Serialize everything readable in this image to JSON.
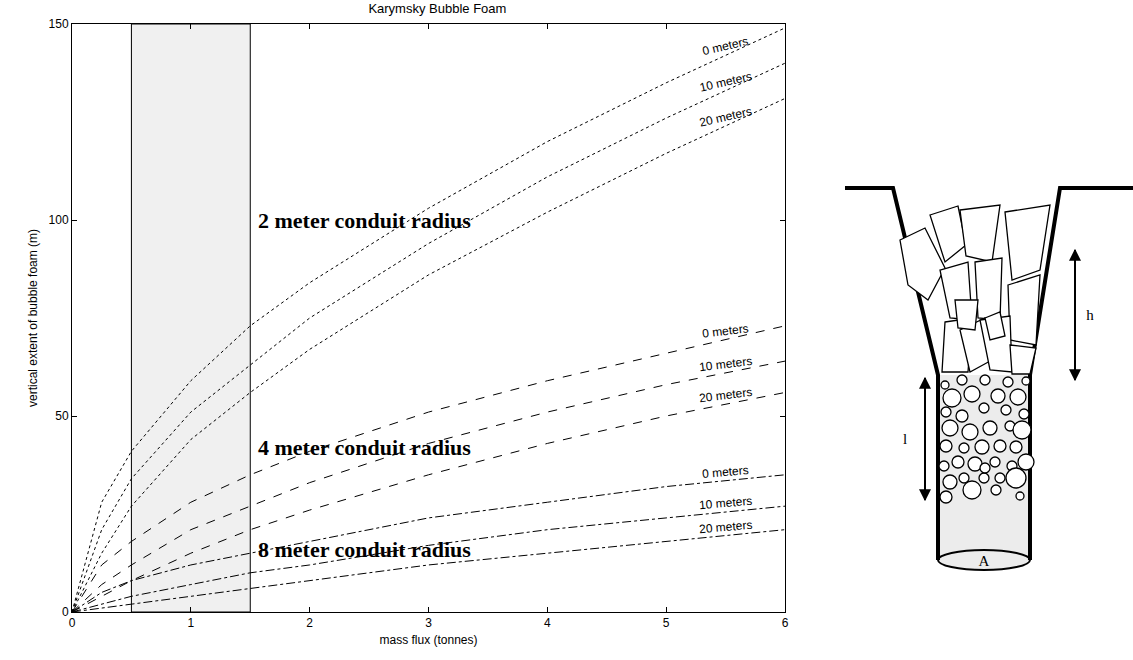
{
  "chart_data": {
    "type": "line",
    "title": "Karymsky Bubble Foam",
    "x_label": "mass flux (tonnes)",
    "y_label": "vertical extent of bubble foam (m)",
    "x": [
      0,
      0.25,
      0.5,
      1,
      1.5,
      2,
      3,
      4,
      5,
      6
    ],
    "series": [
      {
        "name": "0 meters",
        "color": "#000000",
        "line_style": "dot",
        "values": [
          0,
          28,
          41,
          59,
          73,
          84,
          103,
          120,
          135,
          149
        ]
      },
      {
        "name": "10 meters",
        "color": "#000000",
        "line_style": "dot",
        "values": [
          0,
          21,
          34,
          51,
          63,
          75,
          94,
          111,
          126,
          140
        ]
      },
      {
        "name": "20 meters",
        "color": "#000000",
        "line_style": "dot",
        "values": [
          0,
          15,
          27,
          44,
          56,
          67,
          86,
          102,
          117,
          131
        ]
      },
      {
        "name": "0 meters",
        "color": "#000000",
        "line_style": "dash",
        "values": [
          0,
          12,
          18,
          28,
          35,
          41,
          51,
          59,
          66,
          73
        ]
      },
      {
        "name": "10 meters",
        "color": "#000000",
        "line_style": "dash",
        "values": [
          0,
          7,
          12,
          21,
          27,
          33,
          43,
          51,
          58,
          64
        ]
      },
      {
        "name": "20 meters",
        "color": "#000000",
        "line_style": "dash",
        "values": [
          0,
          4,
          8,
          15,
          21,
          26,
          35,
          43,
          50,
          56
        ]
      },
      {
        "name": "0 meters",
        "color": "#000000",
        "line_style": "dashdot",
        "values": [
          0,
          5,
          8,
          12,
          15,
          18,
          24,
          28,
          32,
          35
        ]
      },
      {
        "name": "10 meters",
        "color": "#000000",
        "line_style": "dashdot",
        "values": [
          0,
          2,
          4,
          7,
          10,
          12,
          17,
          21,
          24,
          27
        ]
      },
      {
        "name": "20 meters",
        "color": "#000000",
        "line_style": "dashdot",
        "values": [
          0,
          1,
          2,
          4,
          6,
          8,
          12,
          15,
          18,
          21
        ]
      }
    ],
    "shaded_band": {
      "x": [
        0.5,
        1.5
      ],
      "color": "#f0f0f0"
    },
    "annotations": [
      {
        "text": "2 meter conduit radius",
        "x": 1.55,
        "y": 100
      },
      {
        "text": "4 meter conduit radius",
        "x": 1.55,
        "y": 42
      },
      {
        "text": "8 meter conduit radius",
        "x": 1.55,
        "y": 16
      }
    ],
    "xlim": [
      0,
      6
    ],
    "ylim": [
      0,
      150
    ],
    "xticks": [
      0,
      1,
      2,
      3,
      4,
      5,
      6
    ],
    "yticks": [
      0,
      50,
      100,
      150
    ],
    "grid": false
  },
  "diagram": {
    "labels": {
      "height": "h",
      "length": "l",
      "area": "A"
    }
  }
}
